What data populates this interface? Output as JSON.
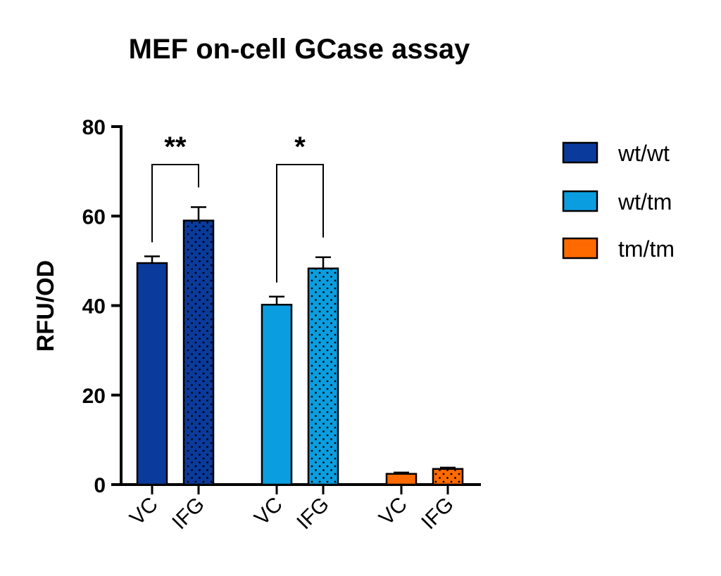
{
  "chart_data": {
    "type": "bar",
    "title": "MEF on-cell GCase assay",
    "ylabel": "RFU/OD",
    "xlabel": "",
    "ylim": [
      0,
      80
    ],
    "yticks": [
      "0",
      "20",
      "40",
      "60",
      "80"
    ],
    "grid": false,
    "legend_position": "right",
    "groups": [
      {
        "name": "wt/wt",
        "color": "#0a3a9c",
        "bars": [
          {
            "category": "VC",
            "value": 49.5,
            "error": 1.5,
            "dotted": false
          },
          {
            "category": "IFG",
            "value": 59.0,
            "error": 3.0,
            "dotted": true
          }
        ]
      },
      {
        "name": "wt/tm",
        "color": "#0a9ee0",
        "bars": [
          {
            "category": "VC",
            "value": 40.2,
            "error": 1.8,
            "dotted": false
          },
          {
            "category": "IFG",
            "value": 48.3,
            "error": 2.5,
            "dotted": true
          }
        ]
      },
      {
        "name": "tm/tm",
        "color": "#ff6a00",
        "bars": [
          {
            "category": "VC",
            "value": 2.4,
            "error": 0.3,
            "dotted": false
          },
          {
            "category": "IFG",
            "value": 3.5,
            "error": 0.3,
            "dotted": true
          }
        ]
      }
    ],
    "significance": [
      {
        "group": 0,
        "label": "**"
      },
      {
        "group": 1,
        "label": "*"
      }
    ]
  }
}
